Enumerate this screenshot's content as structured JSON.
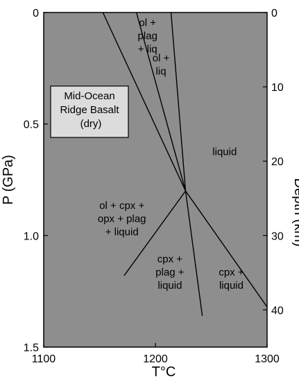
{
  "chart_data": {
    "type": "phase-diagram",
    "title": "",
    "xlabel": "T°C",
    "ylabel_left": "P (GPa)",
    "ylabel_right": "Depth (km)",
    "xlim": [
      1100,
      1300
    ],
    "ylim_pressure": [
      0,
      1.5
    ],
    "ylim_depth": [
      0,
      45
    ],
    "x_ticks": [
      "1100",
      "1200",
      "1300"
    ],
    "y_ticks_left": [
      "0",
      "0.5",
      "1.0",
      "1.5"
    ],
    "y_ticks_right": [
      "0",
      "10",
      "20",
      "30",
      "40"
    ],
    "boundaries": [
      {
        "name": "ol+plag+liq / ol+cpx+opx+plag+liquid",
        "points": [
          [
            1153,
            0.0
          ],
          [
            1227,
            0.8
          ]
        ]
      },
      {
        "name": "ol+plag+liq / ol+liq",
        "points": [
          [
            1183,
            0.0
          ],
          [
            1227,
            0.8
          ]
        ]
      },
      {
        "name": "ol+liq / liquid",
        "points": [
          [
            1214,
            0.0
          ],
          [
            1227,
            0.8
          ]
        ]
      },
      {
        "name": "ol+cpx+opx+plag+liquid / cpx+plag+liquid",
        "points": [
          [
            1227,
            0.8
          ],
          [
            1172,
            1.18
          ]
        ]
      },
      {
        "name": "cpx+plag+liquid / cpx+liquid",
        "points": [
          [
            1227,
            0.8
          ],
          [
            1242,
            1.36
          ]
        ]
      },
      {
        "name": "liquid / cpx+liquid",
        "points": [
          [
            1227,
            0.8
          ],
          [
            1300,
            1.32
          ]
        ]
      }
    ],
    "fields": [
      {
        "lines": [
          "ol +",
          "plag",
          "+ liq"
        ],
        "T": 1193,
        "P": 0.06
      },
      {
        "lines": [
          "ol +",
          "liq"
        ],
        "T": 1205,
        "P": 0.22
      },
      {
        "lines": [
          "liquid"
        ],
        "T": 1262,
        "P": 0.64
      },
      {
        "lines": [
          "ol + cpx +",
          "opx + plag",
          "+ liquid"
        ],
        "T": 1170,
        "P": 0.88
      },
      {
        "lines": [
          "cpx +",
          "plag +",
          "liquid"
        ],
        "T": 1213,
        "P": 1.12
      },
      {
        "lines": [
          "cpx +",
          "liquid"
        ],
        "T": 1268,
        "P": 1.18
      }
    ],
    "label_box": {
      "lines": [
        "Mid-Ocean",
        "Ridge Basalt",
        "(dry)"
      ]
    }
  }
}
